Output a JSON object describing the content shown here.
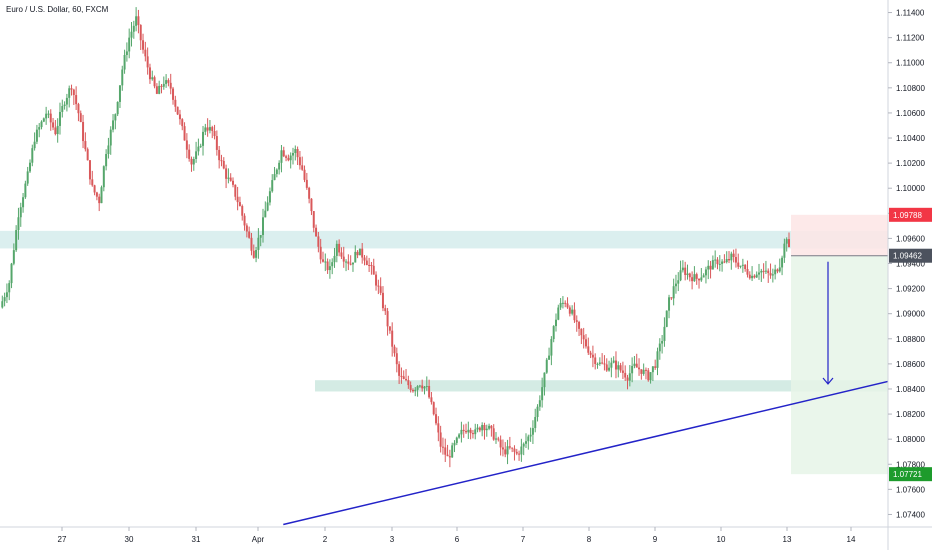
{
  "header": {
    "symbol_title": "Euro / U.S. Dollar, 60, FXCM"
  },
  "colors": {
    "up": "#55a66b",
    "down": "#d9585a",
    "trendline": "#2323c8",
    "zone": "#cfe9ea",
    "support_zone": "#cde8df",
    "stop_fill": "#fde5e5",
    "target_fill": "#e6f4e8",
    "stop_badge": "#f23645",
    "entry_badge": "#4c525e",
    "target_badge": "#1d9b2c",
    "axis_text": "#131722",
    "axis_line": "#d1d4dc"
  },
  "chart_data": {
    "type": "candlestick",
    "title": "Euro / U.S. Dollar, 60, FXCM",
    "ylim": [
      1.073,
      1.115
    ],
    "y_ticks": [
      "1.11400",
      "1.11200",
      "1.11000",
      "1.10800",
      "1.10600",
      "1.10400",
      "1.10200",
      "1.10000",
      "1.09800",
      "1.09600",
      "1.09400",
      "1.09200",
      "1.09000",
      "1.08800",
      "1.08600",
      "1.08400",
      "1.08200",
      "1.08000",
      "1.07800",
      "1.07600",
      "1.07400"
    ],
    "x_ticks": [
      "27",
      "30",
      "31",
      "Apr",
      "2",
      "3",
      "6",
      "7",
      "8",
      "9",
      "10",
      "13",
      "14"
    ],
    "price_path": [
      [
        0,
        1.0905
      ],
      [
        4,
        1.0925
      ],
      [
        8,
        1.098
      ],
      [
        12,
        1.101
      ],
      [
        15,
        1.104
      ],
      [
        20,
        1.106
      ],
      [
        24,
        1.1045
      ],
      [
        28,
        1.107
      ],
      [
        31,
        1.1082
      ],
      [
        34,
        1.106
      ],
      [
        37,
        1.103
      ],
      [
        40,
        1.1
      ],
      [
        43,
        1.099
      ],
      [
        46,
        1.103
      ],
      [
        50,
        1.106
      ],
      [
        53,
        1.1095
      ],
      [
        56,
        1.112
      ],
      [
        59,
        1.1135
      ],
      [
        62,
        1.111
      ],
      [
        65,
        1.109
      ],
      [
        68,
        1.1075
      ],
      [
        71,
        1.1085
      ],
      [
        74,
        1.108
      ],
      [
        77,
        1.106
      ],
      [
        80,
        1.104
      ],
      [
        83,
        1.102
      ],
      [
        86,
        1.103
      ],
      [
        89,
        1.105
      ],
      [
        92,
        1.1045
      ],
      [
        95,
        1.1025
      ],
      [
        98,
        1.101
      ],
      [
        101,
        1.1
      ],
      [
        104,
        1.0985
      ],
      [
        107,
        1.0965
      ],
      [
        110,
        1.0948
      ],
      [
        113,
        1.0965
      ],
      [
        116,
        1.099
      ],
      [
        119,
        1.101
      ],
      [
        122,
        1.103
      ],
      [
        125,
        1.1025
      ],
      [
        128,
        1.103
      ],
      [
        131,
        1.1015
      ],
      [
        134,
        1.099
      ],
      [
        137,
        1.096
      ],
      [
        140,
        1.094
      ],
      [
        143,
        1.0935
      ],
      [
        146,
        1.0955
      ],
      [
        149,
        1.0945
      ],
      [
        152,
        1.094
      ],
      [
        155,
        1.095
      ],
      [
        158,
        1.0945
      ],
      [
        161,
        1.0935
      ],
      [
        164,
        1.092
      ],
      [
        167,
        1.09
      ],
      [
        170,
        1.0875
      ],
      [
        173,
        1.085
      ],
      [
        176,
        1.0845
      ],
      [
        179,
        1.084
      ],
      [
        182,
        1.0845
      ],
      [
        185,
        1.084
      ],
      [
        188,
        1.082
      ],
      [
        191,
        1.0795
      ],
      [
        194,
        1.0785
      ],
      [
        197,
        1.0795
      ],
      [
        200,
        1.0805
      ],
      [
        203,
        1.081
      ],
      [
        206,
        1.0805
      ],
      [
        209,
        1.0812
      ],
      [
        212,
        1.0808
      ],
      [
        215,
        1.08
      ],
      [
        218,
        1.079
      ],
      [
        221,
        1.0792
      ],
      [
        224,
        1.0788
      ],
      [
        227,
        1.0795
      ],
      [
        230,
        1.0805
      ],
      [
        233,
        1.0825
      ],
      [
        236,
        1.085
      ],
      [
        239,
        1.088
      ],
      [
        242,
        1.0905
      ],
      [
        245,
        1.091
      ],
      [
        248,
        1.09
      ],
      [
        251,
        1.0885
      ],
      [
        254,
        1.0875
      ],
      [
        257,
        1.0865
      ],
      [
        260,
        1.086
      ],
      [
        263,
        1.0858
      ],
      [
        266,
        1.086
      ],
      [
        269,
        1.0855
      ],
      [
        272,
        1.085
      ],
      [
        275,
        1.0858
      ],
      [
        278,
        1.0855
      ],
      [
        281,
        1.085
      ],
      [
        284,
        1.086
      ],
      [
        287,
        1.088
      ],
      [
        290,
        1.091
      ],
      [
        293,
        1.0925
      ],
      [
        296,
        1.0935
      ],
      [
        299,
        1.093
      ],
      [
        302,
        1.0928
      ],
      [
        305,
        1.0932
      ],
      [
        308,
        1.0938
      ],
      [
        311,
        1.0942
      ],
      [
        314,
        1.094
      ],
      [
        317,
        1.0945
      ],
      [
        320,
        1.094
      ],
      [
        323,
        1.0935
      ],
      [
        326,
        1.093
      ],
      [
        329,
        1.0935
      ],
      [
        332,
        1.0932
      ],
      [
        335,
        1.093
      ],
      [
        338,
        1.094
      ],
      [
        341,
        1.0962
      ],
      [
        342,
        1.095
      ]
    ],
    "resistance_zone": [
      1.0952,
      1.0966
    ],
    "support_zone": [
      1.0838,
      1.0847
    ],
    "trendline": [
      [
        0.31,
        1.0732
      ],
      [
        1.0,
        1.0846
      ]
    ],
    "position": {
      "type": "short",
      "stop": 1.09788,
      "entry": 1.09462,
      "target": 1.07721
    },
    "badges": {
      "stop": "1.09788",
      "entry": "1.09462",
      "target": "1.07721"
    }
  }
}
